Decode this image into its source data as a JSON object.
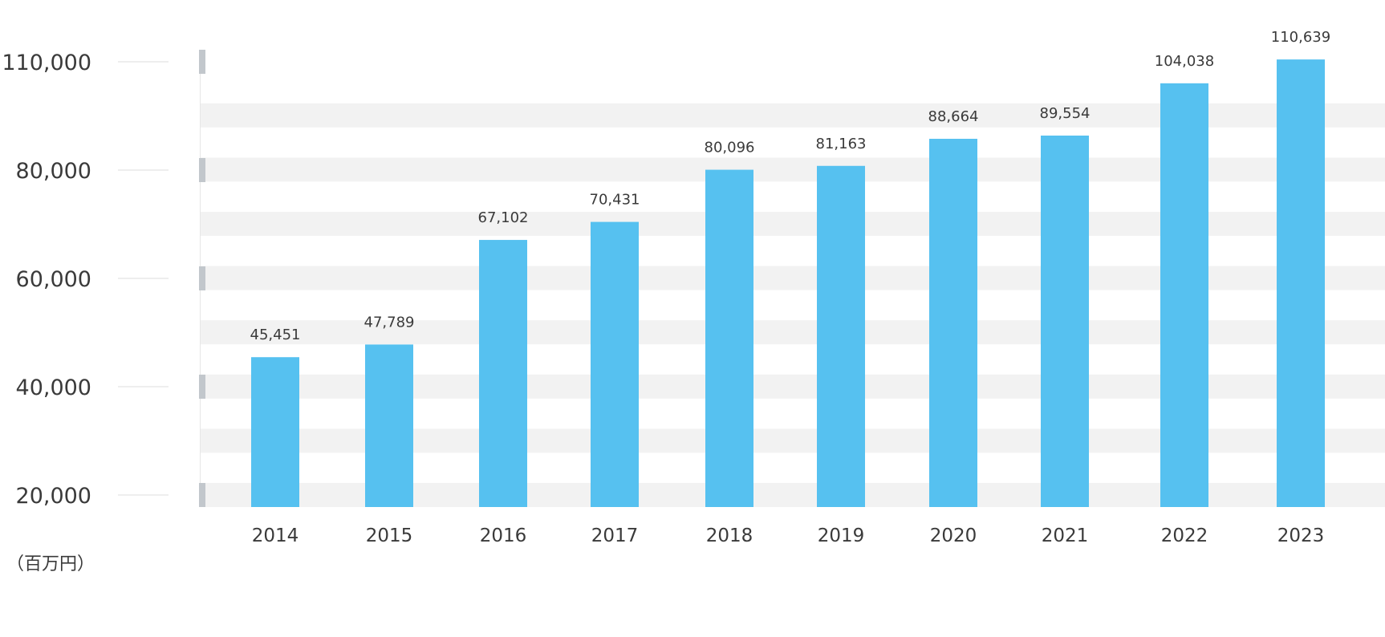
{
  "chart_data": {
    "type": "bar",
    "title": "",
    "xlabel": "",
    "ylabel": "",
    "unit_label": "（百万円）",
    "categories": [
      "2014",
      "2015",
      "2016",
      "2017",
      "2018",
      "2019",
      "2020",
      "2021",
      "2022",
      "2023"
    ],
    "values": [
      45451,
      47789,
      67102,
      70431,
      80096,
      81163,
      88664,
      89554,
      104038,
      110639
    ],
    "value_labels": [
      "45,451",
      "47,789",
      "67,102",
      "70,431",
      "80,096",
      "81,163",
      "88,664",
      "89,554",
      "104,038",
      "110,639"
    ],
    "y_ticks": [
      20000,
      40000,
      60000,
      80000,
      110000
    ],
    "y_tick_labels": [
      "20,000",
      "40,000",
      "60,000",
      "80,000",
      "110,000"
    ],
    "ylim": [
      20000,
      110000
    ],
    "y_scale": "piecewise",
    "grid": true,
    "legend": "none",
    "colors": {
      "bar": "#56c1f0",
      "band": "#f2f2f2",
      "tick_marker": "#c2c7cc",
      "text": "#3a3a3a",
      "tick_line": "#dcdcdc"
    }
  }
}
